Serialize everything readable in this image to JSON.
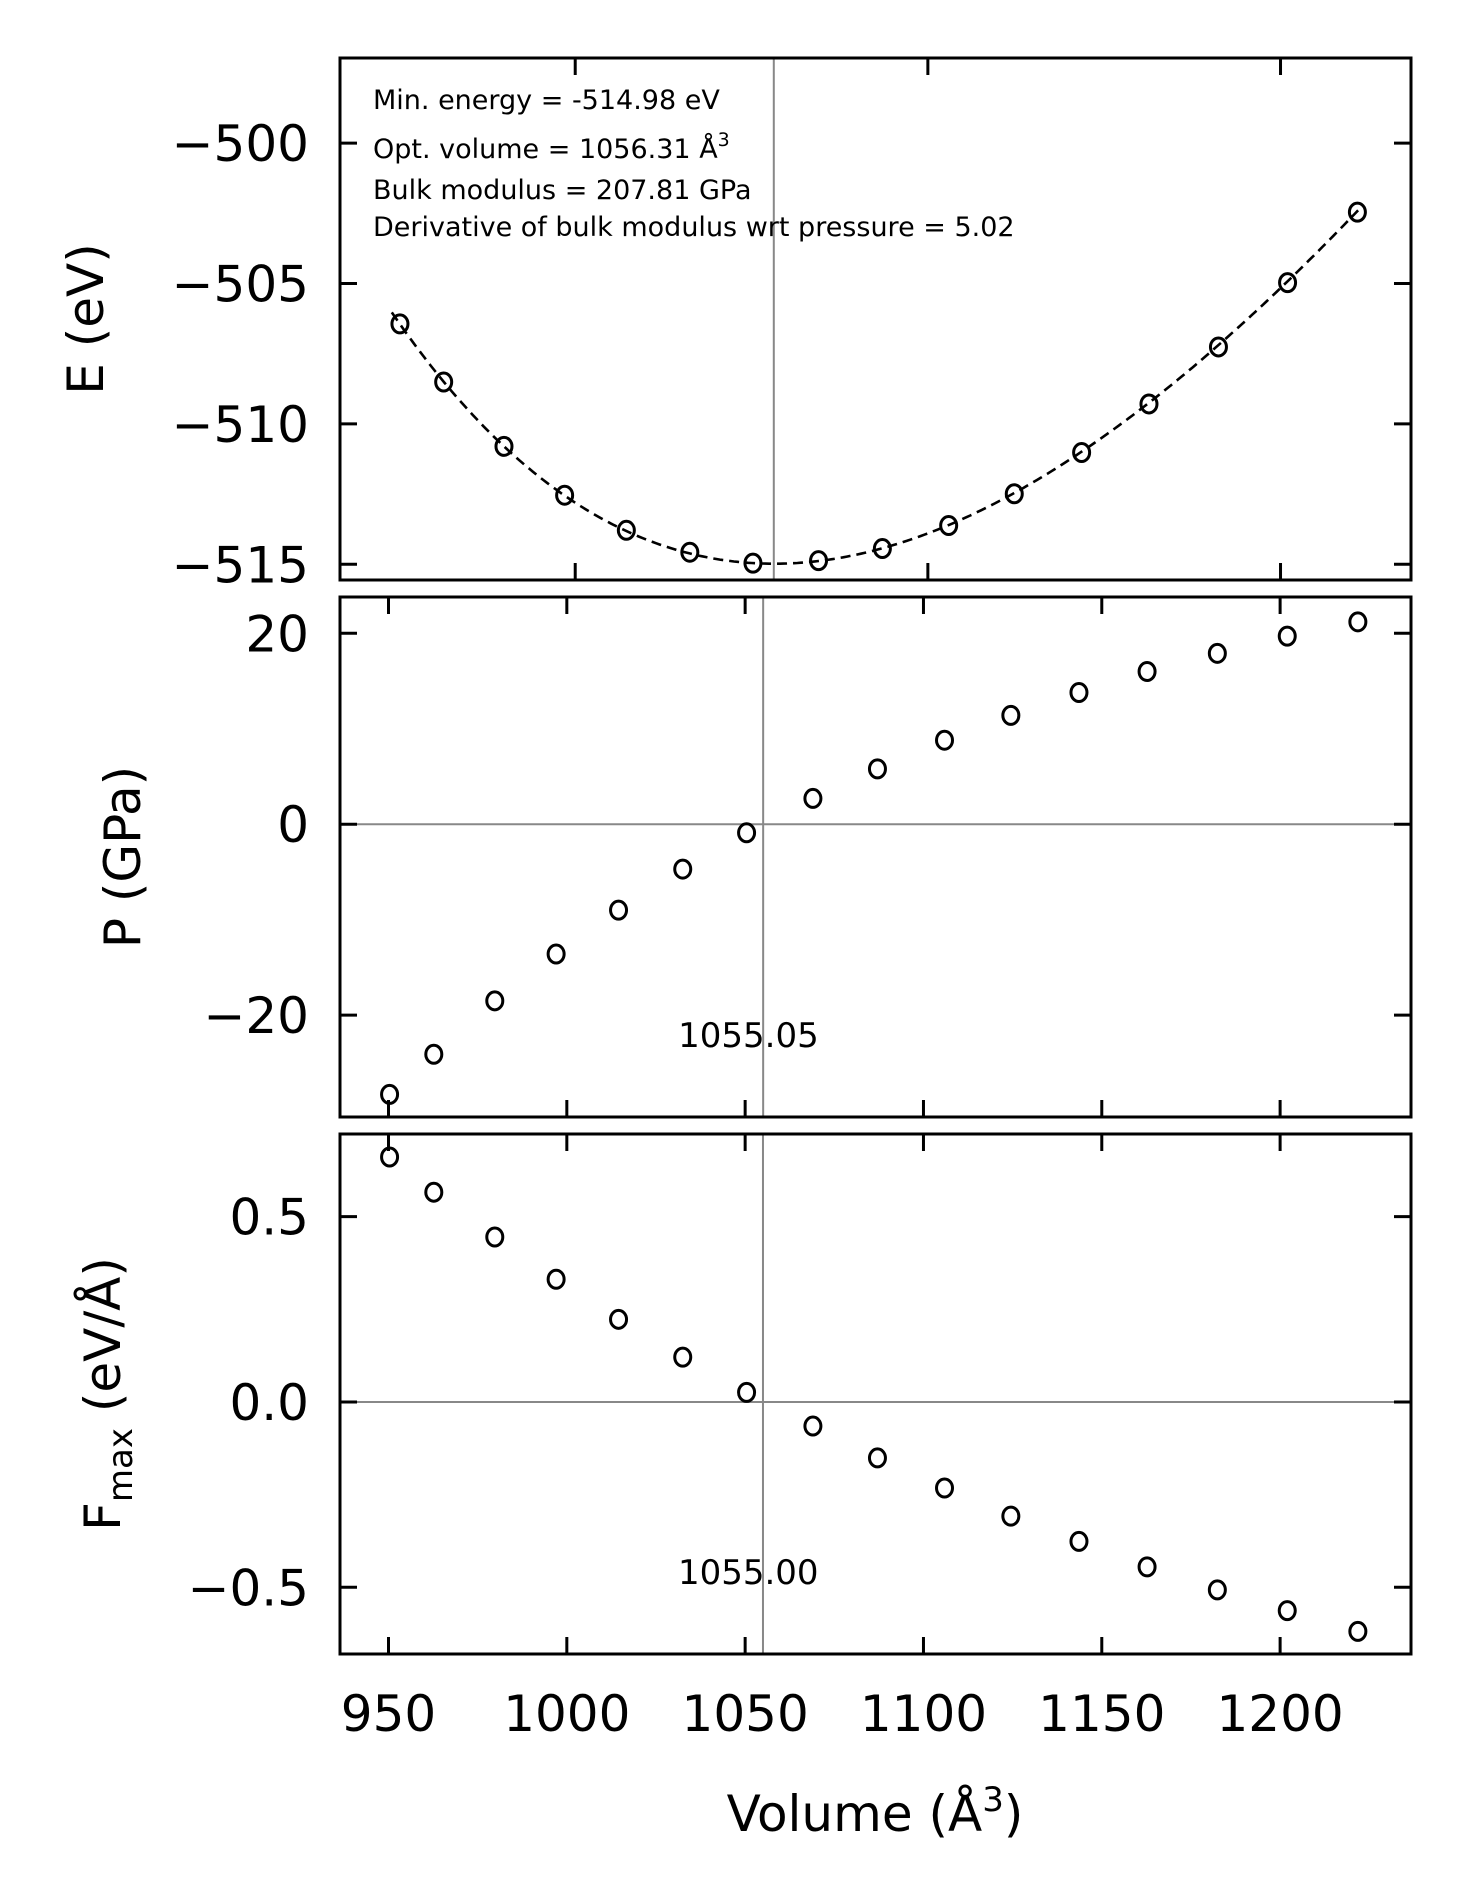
{
  "chart_data": [
    {
      "type": "scatter",
      "id": "energy",
      "ylabel": "E (eV)",
      "xlim": [
        933.3,
        1237.0
      ],
      "ylim": [
        -515.56,
        -496.97
      ],
      "xticks": [
        1000,
        1100,
        1200
      ],
      "yticks": [
        -500,
        -505,
        -510,
        -515
      ],
      "ytick_labels": [
        "−500",
        "−505",
        "−510",
        "−515"
      ],
      "x": [
        950.3,
        962.7,
        979.8,
        997.0,
        1014.5,
        1032.5,
        1050.4,
        1069.0,
        1087.1,
        1105.9,
        1124.5,
        1143.6,
        1162.7,
        1182.4,
        1202.0,
        1221.8
      ],
      "y": [
        -506.44,
        -508.51,
        -510.8,
        -512.54,
        -513.79,
        -514.57,
        -514.96,
        -514.87,
        -514.44,
        -513.62,
        -512.49,
        -511.02,
        -509.29,
        -507.26,
        -504.97,
        -502.46
      ],
      "fit": {
        "style": "dashed",
        "E0": -514.98,
        "V0": 1056.31,
        "B0_GPa": 207.81,
        "B0_prime": 5.02,
        "range": [
          948,
          1222
        ]
      },
      "vline": 1056.31,
      "annotations": [
        "Min. energy = -514.98 eV",
        "Opt. volume = 1056.31 Å",
        "Bulk modulus = 207.81 GPa",
        "Derivative of bulk modulus wrt pressure = 5.02"
      ],
      "annotation_superscript": "3"
    },
    {
      "type": "scatter",
      "id": "pressure",
      "ylabel": "P (GPa)",
      "xlim": [
        936.4,
        1236.7
      ],
      "ylim": [
        -30.67,
        23.8
      ],
      "xticks": [
        950,
        1000,
        1050,
        1100,
        1150,
        1200
      ],
      "yticks": [
        20,
        0,
        -20
      ],
      "ytick_labels": [
        "20",
        "0",
        "−20"
      ],
      "x": [
        950.3,
        962.7,
        979.8,
        997.0,
        1014.5,
        1032.5,
        1050.4,
        1069.0,
        1087.1,
        1105.9,
        1124.5,
        1143.6,
        1162.7,
        1182.4,
        1202.0,
        1221.8
      ],
      "y": [
        -28.3,
        -24.1,
        -18.5,
        -13.6,
        -9.0,
        -4.7,
        -0.9,
        2.7,
        5.8,
        8.8,
        11.4,
        13.8,
        16.0,
        17.9,
        19.7,
        21.2
      ],
      "hline": 0,
      "vline": 1055.05,
      "vline_label": "1055.05"
    },
    {
      "type": "scatter",
      "id": "force",
      "ylabel": "F",
      "ylabel_sub": "max",
      "ylabel_unit": " (eV/Å)",
      "xlabel": "Volume (Å",
      "xlabel_sup": "3",
      "xlabel_close": ")",
      "xlim": [
        936.4,
        1236.7
      ],
      "ylim": [
        -0.68,
        0.723
      ],
      "xticks": [
        950,
        1000,
        1050,
        1100,
        1150,
        1200
      ],
      "xtick_labels": [
        "950",
        "1000",
        "1050",
        "1100",
        "1150",
        "1200"
      ],
      "yticks": [
        0.5,
        0.0,
        -0.5
      ],
      "ytick_labels": [
        "0.5",
        "0.0",
        "−0.5"
      ],
      "x": [
        950.3,
        962.7,
        979.8,
        997.0,
        1014.5,
        1032.5,
        1050.4,
        1069.0,
        1087.1,
        1105.9,
        1124.5,
        1143.6,
        1162.7,
        1182.4,
        1202.0,
        1221.8
      ],
      "y": [
        0.661,
        0.566,
        0.445,
        0.331,
        0.223,
        0.121,
        0.026,
        -0.065,
        -0.151,
        -0.232,
        -0.308,
        -0.376,
        -0.445,
        -0.507,
        -0.563,
        -0.619
      ],
      "hline": 0,
      "vline": 1055.0,
      "vline_label": "1055.00"
    }
  ],
  "colors": {
    "marker": "#000000",
    "frame": "#000000",
    "guide": "#888888"
  }
}
